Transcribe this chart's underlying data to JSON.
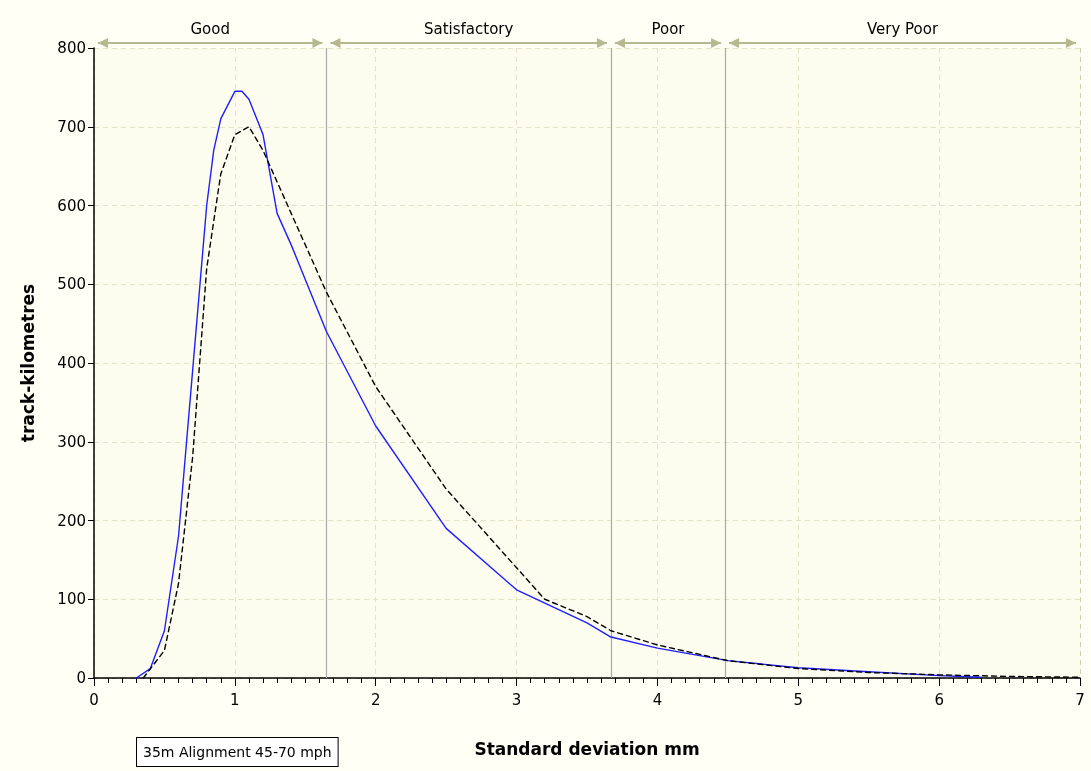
{
  "chart_data": {
    "type": "line",
    "xlabel": "Standard deviation mm",
    "ylabel": "track-kilometres",
    "annotations": [
      "35m Alignment 45-70 mph"
    ],
    "xlim": [
      0,
      7
    ],
    "xticks": [
      0,
      1,
      2,
      3,
      4,
      5,
      6,
      7
    ],
    "ylim": [
      0,
      800
    ],
    "yticks": [
      0,
      100,
      200,
      300,
      400,
      500,
      600,
      700,
      800
    ],
    "grid": true,
    "series": [
      {
        "color": "#1f1fff",
        "line_style": "solid",
        "x": [
          0.3,
          0.4,
          0.5,
          0.6,
          0.7,
          0.8,
          0.85,
          0.9,
          1.0,
          1.05,
          1.1,
          1.2,
          1.3,
          1.4,
          1.65,
          2,
          2.5,
          3,
          3.5,
          3.67,
          4,
          4.5,
          5,
          5.5,
          6,
          6.3
        ],
        "values": [
          0,
          12,
          60,
          180,
          390,
          600,
          670,
          710,
          745,
          745,
          735,
          690,
          590,
          550,
          440,
          320,
          190,
          112,
          70,
          52,
          38,
          22,
          13,
          8,
          3,
          1
        ]
      },
      {
        "color": "#000000",
        "line_style": "dashed",
        "x": [
          0.35,
          0.5,
          0.6,
          0.7,
          0.8,
          0.9,
          1.0,
          1.1,
          1.2,
          1.4,
          1.65,
          2,
          2.5,
          3,
          3.2,
          3.5,
          3.67,
          4,
          4.5,
          5,
          5.5,
          6,
          6.5,
          7
        ],
        "values": [
          0,
          35,
          120,
          280,
          520,
          640,
          690,
          700,
          670,
          590,
          490,
          370,
          240,
          140,
          100,
          78,
          60,
          42,
          22,
          12,
          7,
          4,
          2,
          1
        ]
      }
    ],
    "ref_lines": [
      {
        "axis": "x",
        "value": 1.65,
        "color": "#a8a8a8"
      },
      {
        "axis": "x",
        "value": 3.67,
        "color": "#a8a8a8"
      },
      {
        "axis": "x",
        "value": 4.48,
        "color": "#a8a8a8"
      }
    ],
    "bands": [
      {
        "axis": "x",
        "from": 0,
        "to": 1.65,
        "label": "Good",
        "color": "#fbfbe6"
      },
      {
        "axis": "x",
        "from": 1.65,
        "to": 3.67,
        "label": "Satisfactory",
        "color": "#fbfbe6"
      },
      {
        "axis": "x",
        "from": 3.67,
        "to": 4.48,
        "label": "Poor",
        "color": "#fbfbe6"
      },
      {
        "axis": "x",
        "from": 4.48,
        "to": 7,
        "label": "Very Poor",
        "color": "#fbfbe6"
      }
    ]
  }
}
